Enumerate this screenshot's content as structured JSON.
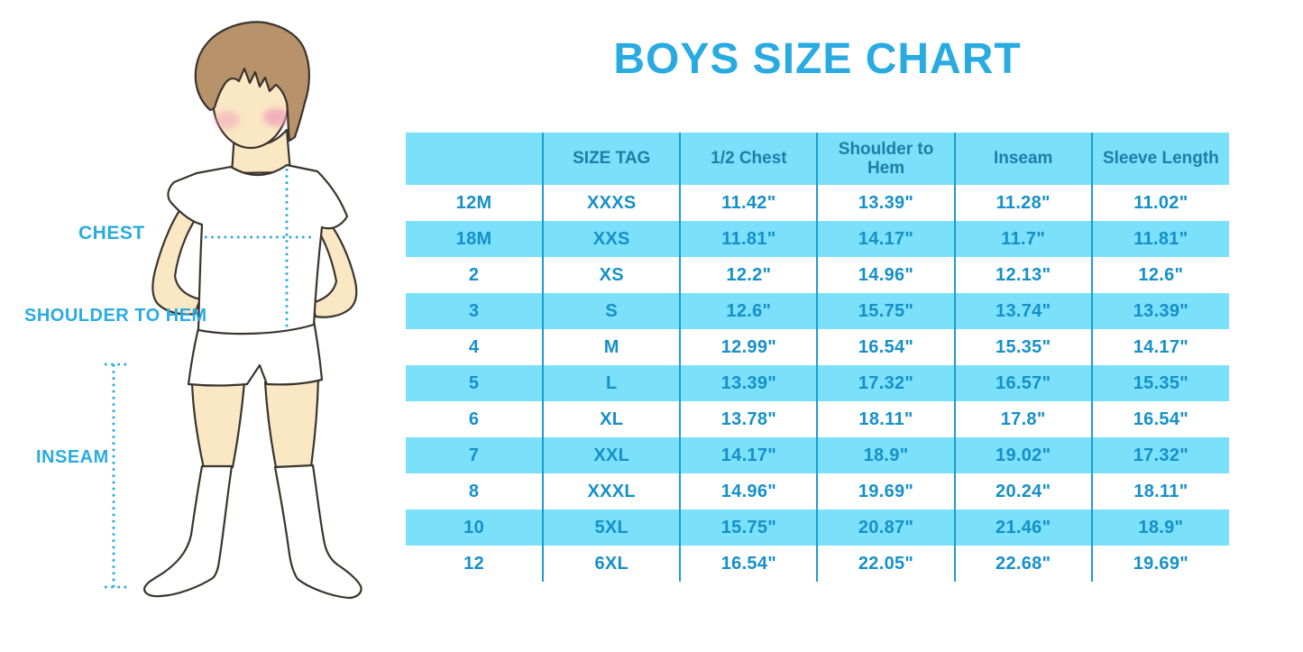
{
  "title": "BOYS SIZE CHART",
  "figure": {
    "chest_label": "CHEST",
    "shoulder_to_hem_label": "SHOULDER TO HEM",
    "inseam_label": "INSEAM"
  },
  "chart_data": {
    "type": "table",
    "title": "BOYS SIZE CHART",
    "columns": [
      "",
      "SIZE TAG",
      "1/2 Chest",
      "Shoulder to Hem",
      "Inseam",
      "Sleeve Length"
    ],
    "rows": [
      [
        "12M",
        "XXXS",
        "11.42\"",
        "13.39\"",
        "11.28\"",
        "11.02\""
      ],
      [
        "18M",
        "XXS",
        "11.81\"",
        "14.17\"",
        "11.7\"",
        "11.81\""
      ],
      [
        "2",
        "XS",
        "12.2\"",
        "14.96\"",
        "12.13\"",
        "12.6\""
      ],
      [
        "3",
        "S",
        "12.6\"",
        "15.75\"",
        "13.74\"",
        "13.39\""
      ],
      [
        "4",
        "M",
        "12.99\"",
        "16.54\"",
        "15.35\"",
        "14.17\""
      ],
      [
        "5",
        "L",
        "13.39\"",
        "17.32\"",
        "16.57\"",
        "15.35\""
      ],
      [
        "6",
        "XL",
        "13.78\"",
        "18.11\"",
        "17.8\"",
        "16.54\""
      ],
      [
        "7",
        "XXL",
        "14.17\"",
        "18.9\"",
        "19.02\"",
        "17.32\""
      ],
      [
        "8",
        "XXXL",
        "14.96\"",
        "19.69\"",
        "20.24\"",
        "18.11\""
      ],
      [
        "10",
        "5XL",
        "15.75\"",
        "20.87\"",
        "21.46\"",
        "18.9\""
      ],
      [
        "12",
        "6XL",
        "16.54\"",
        "22.05\"",
        "22.68\"",
        "19.69\""
      ]
    ],
    "striped_rows": "every second data row highlighted",
    "legend_position": "none",
    "grid": "vertical dividers only"
  },
  "colors": {
    "accent_blue": "#29ABE2",
    "table_text": "#1590C8",
    "header_text": "#1E7EA8",
    "stripe": "#7BE0FA",
    "divider": "#1E9CD6",
    "skin": "#FAE7C4",
    "hair": "#B7926A",
    "outline": "#3A342E",
    "cheek": "#F1A3BC",
    "garment_white": "#FFFFFF",
    "page_bg": "#FFFFFF"
  }
}
